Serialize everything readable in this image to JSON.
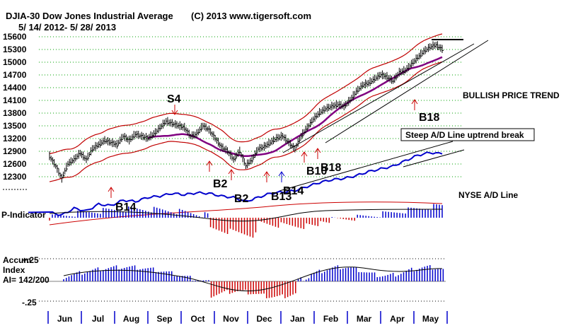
{
  "chart_data": {
    "type": "line",
    "title": "DJIA-30  Dow Jones Industrial Average",
    "copyright": "(C) 2013 www.tigersoft.com",
    "date_range": "5/ 14/ 2012- 5/ 28/ 2013",
    "ylim": [
      12000,
      15600
    ],
    "yticks": [
      15600,
      15300,
      15000,
      14700,
      14400,
      14100,
      13800,
      13500,
      13200,
      12900,
      12600,
      12300
    ],
    "months": [
      "Jun",
      "Jul",
      "Aug",
      "Sep",
      "Oct",
      "Nov",
      "Dec",
      "Jan",
      "Feb",
      "Mar",
      "Apr",
      "May"
    ],
    "series": [
      {
        "name": "DJIA close",
        "points": [
          [
            0,
            12780
          ],
          [
            0.5,
            12550
          ],
          [
            1,
            12250
          ],
          [
            1.5,
            12600
          ],
          [
            2,
            12700
          ],
          [
            2.5,
            12850
          ],
          [
            3,
            12700
          ],
          [
            3.5,
            12950
          ],
          [
            4,
            13050
          ],
          [
            4.5,
            13150
          ],
          [
            5,
            13100
          ],
          [
            5.5,
            13050
          ],
          [
            6,
            13250
          ],
          [
            6.5,
            13150
          ],
          [
            7,
            13300
          ],
          [
            7.5,
            13250
          ],
          [
            8,
            13200
          ],
          [
            8.5,
            13300
          ],
          [
            9,
            13450
          ],
          [
            9.5,
            13600
          ],
          [
            10,
            13550
          ],
          [
            10.5,
            13500
          ],
          [
            11,
            13450
          ],
          [
            11.5,
            13250
          ],
          [
            12,
            13300
          ],
          [
            12.5,
            13500
          ],
          [
            13,
            13400
          ],
          [
            13.5,
            13200
          ],
          [
            14,
            13000
          ],
          [
            14.5,
            12900
          ],
          [
            15,
            12700
          ],
          [
            15.5,
            12900
          ],
          [
            16,
            12550
          ],
          [
            16.5,
            12700
          ],
          [
            17,
            12950
          ],
          [
            17.5,
            13000
          ],
          [
            18,
            13100
          ],
          [
            18.5,
            13200
          ],
          [
            19,
            13250
          ],
          [
            19.5,
            13100
          ],
          [
            20,
            12950
          ],
          [
            20.5,
            13250
          ],
          [
            21,
            13450
          ],
          [
            21.5,
            13650
          ],
          [
            22,
            13800
          ],
          [
            22.5,
            13900
          ],
          [
            23,
            13950
          ],
          [
            23.5,
            14000
          ],
          [
            24,
            13950
          ],
          [
            24.5,
            14100
          ],
          [
            25,
            14300
          ],
          [
            25.5,
            14450
          ],
          [
            26,
            14500
          ],
          [
            26.5,
            14600
          ],
          [
            27,
            14700
          ],
          [
            27.5,
            14650
          ],
          [
            28,
            14550
          ],
          [
            28.5,
            14750
          ],
          [
            29,
            14800
          ],
          [
            29.5,
            14950
          ],
          [
            30,
            15100
          ],
          [
            30.5,
            15250
          ],
          [
            31,
            15350
          ],
          [
            31.5,
            15400
          ],
          [
            32,
            15300
          ]
        ]
      },
      {
        "name": "NYSE A/D Line",
        "points": [
          [
            0,
            0.0
          ],
          [
            1,
            -0.1
          ],
          [
            2,
            0.15
          ],
          [
            3,
            0.05
          ],
          [
            4,
            0.3
          ],
          [
            5,
            0.25
          ],
          [
            6,
            0.45
          ],
          [
            7,
            0.4
          ],
          [
            8,
            0.55
          ],
          [
            9,
            0.6
          ],
          [
            10,
            0.7
          ],
          [
            11,
            0.65
          ],
          [
            12,
            0.72
          ],
          [
            13,
            0.7
          ],
          [
            14,
            0.6
          ],
          [
            15,
            0.55
          ],
          [
            16,
            0.4
          ],
          [
            17,
            0.55
          ],
          [
            18,
            0.7
          ],
          [
            19,
            0.75
          ],
          [
            20,
            0.8
          ],
          [
            21,
            0.95
          ],
          [
            22,
            1.1
          ],
          [
            23,
            1.2
          ],
          [
            24,
            1.25
          ],
          [
            25,
            1.35
          ],
          [
            26,
            1.5
          ],
          [
            27,
            1.6
          ],
          [
            28,
            1.7
          ],
          [
            29,
            1.9
          ],
          [
            30,
            2.1
          ],
          [
            31,
            2.2
          ],
          [
            32,
            2.15
          ]
        ]
      }
    ],
    "annotations": [
      "BULLISH PRICE TREND",
      "Steep A/D Line uptrend break",
      "NYSE A/D Line",
      "P-Indicator",
      "Accum",
      "Index",
      "AI= 142/200",
      "+.25",
      "-.25"
    ],
    "signals": [
      "S4",
      "B2",
      "B2",
      "B14",
      "B13",
      "B14",
      "B10",
      "B18",
      "B18"
    ]
  }
}
